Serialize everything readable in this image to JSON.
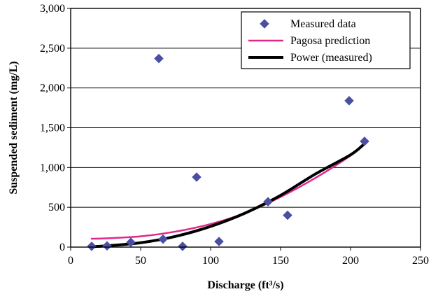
{
  "chart_data": {
    "type": "scatter",
    "xlabel": "Discharge (ft³/s)",
    "ylabel": "Suspended sediment (mg/L)",
    "xlim": [
      0,
      250
    ],
    "ylim": [
      0,
      3000
    ],
    "x_ticks": [
      0,
      50,
      100,
      150,
      200,
      250
    ],
    "y_ticks": [
      0,
      500,
      1000,
      1500,
      2000,
      2500,
      3000
    ],
    "x_tick_labels": [
      "0",
      "50",
      "100",
      "150",
      "200",
      "250"
    ],
    "y_tick_labels": [
      "0",
      "500",
      "1,000",
      "1,500",
      "2,000",
      "2,500",
      "3,000"
    ],
    "grid": "horizontal",
    "legend_position": "top-right",
    "series": [
      {
        "name": "Measured data",
        "kind": "scatter",
        "marker": "diamond",
        "color": "#4a4fa3",
        "points": [
          {
            "x": 15,
            "y": 10
          },
          {
            "x": 26,
            "y": 15
          },
          {
            "x": 43,
            "y": 60
          },
          {
            "x": 63,
            "y": 2370
          },
          {
            "x": 66,
            "y": 100
          },
          {
            "x": 80,
            "y": 10
          },
          {
            "x": 90,
            "y": 880
          },
          {
            "x": 106,
            "y": 70
          },
          {
            "x": 141,
            "y": 570
          },
          {
            "x": 155,
            "y": 400
          },
          {
            "x": 199,
            "y": 1840
          },
          {
            "x": 210,
            "y": 1330
          }
        ]
      },
      {
        "name": "Pagosa prediction",
        "kind": "line",
        "color": "#e0288a",
        "points": [
          {
            "x": 15,
            "y": 105
          },
          {
            "x": 25,
            "y": 110
          },
          {
            "x": 50,
            "y": 135
          },
          {
            "x": 75,
            "y": 195
          },
          {
            "x": 100,
            "y": 290
          },
          {
            "x": 125,
            "y": 430
          },
          {
            "x": 150,
            "y": 630
          },
          {
            "x": 175,
            "y": 870
          },
          {
            "x": 200,
            "y": 1150
          },
          {
            "x": 210,
            "y": 1290
          }
        ]
      },
      {
        "name": "Power (measured)",
        "kind": "line",
        "color": "#000000",
        "points": [
          {
            "x": 15,
            "y": 5
          },
          {
            "x": 25,
            "y": 15
          },
          {
            "x": 50,
            "y": 55
          },
          {
            "x": 75,
            "y": 135
          },
          {
            "x": 100,
            "y": 260
          },
          {
            "x": 125,
            "y": 430
          },
          {
            "x": 150,
            "y": 650
          },
          {
            "x": 175,
            "y": 920
          },
          {
            "x": 200,
            "y": 1160
          },
          {
            "x": 210,
            "y": 1300
          }
        ]
      }
    ]
  }
}
